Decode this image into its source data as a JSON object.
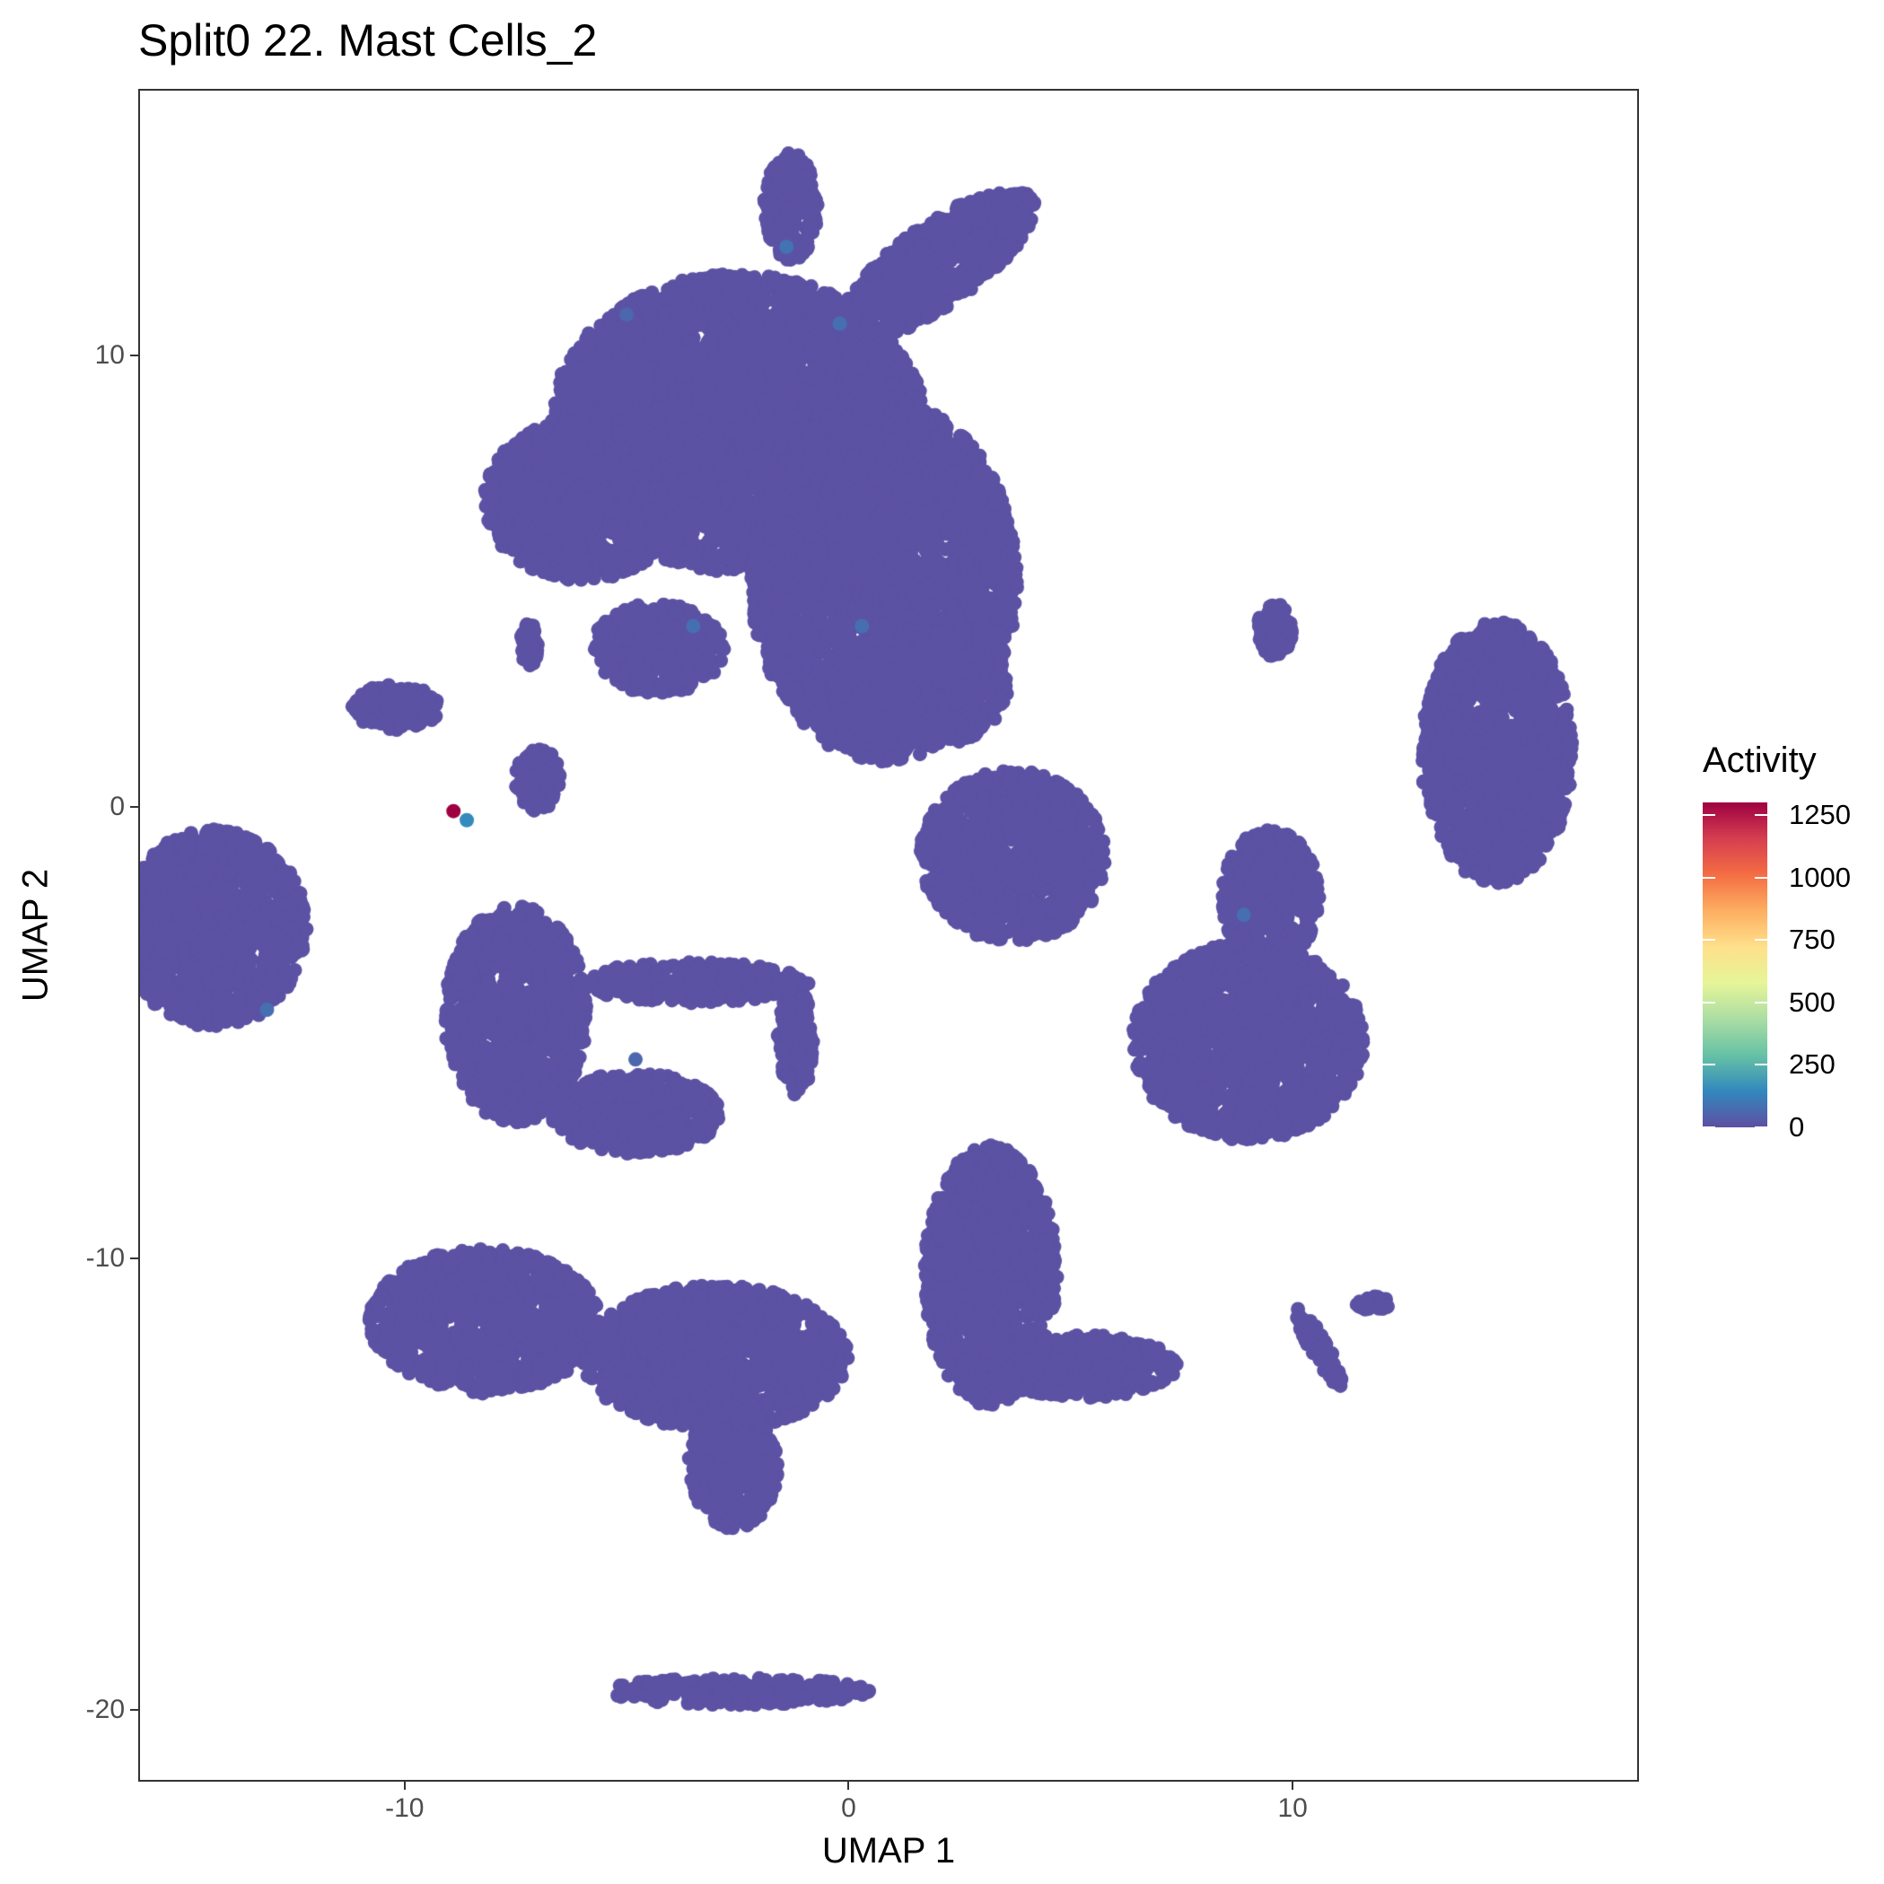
{
  "chart_data": {
    "type": "scatter",
    "title": "Split0 22. Mast Cells_2",
    "xlabel": "UMAP 1",
    "ylabel": "UMAP 2",
    "xlim": [
      -16,
      17.8
    ],
    "ylim": [
      -21.6,
      15.9
    ],
    "x_ticks": [
      -10,
      0,
      10
    ],
    "y_ticks": [
      10,
      0,
      -10,
      -20
    ],
    "grid": false,
    "legend": {
      "title": "Activity",
      "placement": "right",
      "ticks": [
        0,
        250,
        500,
        750,
        1000,
        1250
      ],
      "range": [
        0,
        1300
      ],
      "palette": [
        "#5E4FA2",
        "#3288BD",
        "#66C2A5",
        "#ABDDA4",
        "#E6F598",
        "#FEE08B",
        "#FDAE61",
        "#F46D43",
        "#D53E4F",
        "#9E0142"
      ]
    },
    "base_value": 0,
    "base_color": "#5C52A4",
    "clusters": [
      {
        "cx": -2.5,
        "cy": 8.5,
        "rx": 4.2,
        "ry": 3.3,
        "rot": 0
      },
      {
        "cx": -6.0,
        "cy": 6.8,
        "rx": 2.2,
        "ry": 1.8,
        "rot": 0
      },
      {
        "cx": 0.8,
        "cy": 5.0,
        "rx": 3.0,
        "ry": 4.0,
        "rot": 0
      },
      {
        "cx": 1.6,
        "cy": 2.6,
        "rx": 2.0,
        "ry": 1.3,
        "rot": 0
      },
      {
        "cx": -4.3,
        "cy": 3.5,
        "rx": 1.5,
        "ry": 1.0,
        "rot": 0
      },
      {
        "cx": 2.0,
        "cy": 12.0,
        "rx": 2.6,
        "ry": 0.9,
        "rot": 35
      },
      {
        "cx": -1.3,
        "cy": 13.3,
        "rx": 0.6,
        "ry": 1.2,
        "rot": 0
      },
      {
        "cx": -14.3,
        "cy": -2.7,
        "rx": 2.1,
        "ry": 2.2,
        "rot": 0
      },
      {
        "cx": -7.5,
        "cy": -4.6,
        "rx": 1.6,
        "ry": 2.4,
        "rot": 0
      },
      {
        "cx": -4.8,
        "cy": -6.8,
        "rx": 1.9,
        "ry": 0.9,
        "rot": 0
      },
      {
        "cx": -3.5,
        "cy": -3.9,
        "rx": 2.6,
        "ry": 0.45,
        "rot": 0
      },
      {
        "cx": -1.2,
        "cy": -5.2,
        "rx": 0.4,
        "ry": 1.2,
        "rot": 0
      },
      {
        "cx": 3.7,
        "cy": -1.1,
        "rx": 2.1,
        "ry": 1.9,
        "rot": 0
      },
      {
        "cx": 9.0,
        "cy": -5.2,
        "rx": 2.6,
        "ry": 2.2,
        "rot": 0
      },
      {
        "cx": 9.5,
        "cy": -2.0,
        "rx": 1.1,
        "ry": 1.5,
        "rot": 0
      },
      {
        "cx": 14.6,
        "cy": 1.2,
        "rx": 1.7,
        "ry": 2.9,
        "rot": 0
      },
      {
        "cx": -8.2,
        "cy": -11.4,
        "rx": 2.6,
        "ry": 1.6,
        "rot": 0
      },
      {
        "cx": -3.0,
        "cy": -12.2,
        "rx": 3.0,
        "ry": 1.6,
        "rot": 0
      },
      {
        "cx": -2.6,
        "cy": -14.6,
        "rx": 1.0,
        "ry": 1.4,
        "rot": 0
      },
      {
        "cx": 3.2,
        "cy": -10.4,
        "rx": 1.5,
        "ry": 2.9,
        "rot": 0
      },
      {
        "cx": 5.2,
        "cy": -12.4,
        "rx": 2.2,
        "ry": 0.7,
        "rot": 0
      },
      {
        "cx": -2.5,
        "cy": -19.6,
        "rx": 3.0,
        "ry": 0.3,
        "rot": 0
      },
      {
        "cx": 9.6,
        "cy": 3.9,
        "rx": 0.4,
        "ry": 0.6,
        "rot": 0
      },
      {
        "cx": 10.6,
        "cy": -12.0,
        "rx": 0.2,
        "ry": 1.0,
        "rot": 30
      },
      {
        "cx": 11.8,
        "cy": -11.0,
        "rx": 0.4,
        "ry": 0.15,
        "rot": 0
      },
      {
        "cx": -10.2,
        "cy": 2.2,
        "rx": 1.0,
        "ry": 0.5,
        "rot": 0
      },
      {
        "cx": -7.0,
        "cy": 0.6,
        "rx": 0.5,
        "ry": 0.7,
        "rot": 0
      },
      {
        "cx": -7.2,
        "cy": 3.6,
        "rx": 0.2,
        "ry": 0.5,
        "rot": 0
      }
    ],
    "highlighted_points": [
      {
        "x": -8.9,
        "y": -0.1,
        "value": 1300
      },
      {
        "x": -8.6,
        "y": -0.3,
        "value": 150
      },
      {
        "x": -1.4,
        "y": 12.4,
        "value": 90
      },
      {
        "x": -0.2,
        "y": 10.7,
        "value": 80
      },
      {
        "x": -5.0,
        "y": 10.9,
        "value": 60
      },
      {
        "x": -3.5,
        "y": 4.0,
        "value": 80
      },
      {
        "x": 0.3,
        "y": 4.0,
        "value": 80
      },
      {
        "x": 8.9,
        "y": -2.4,
        "value": 80
      },
      {
        "x": -13.1,
        "y": -4.5,
        "value": 80
      },
      {
        "x": -4.8,
        "y": -5.6,
        "value": 60
      }
    ]
  }
}
